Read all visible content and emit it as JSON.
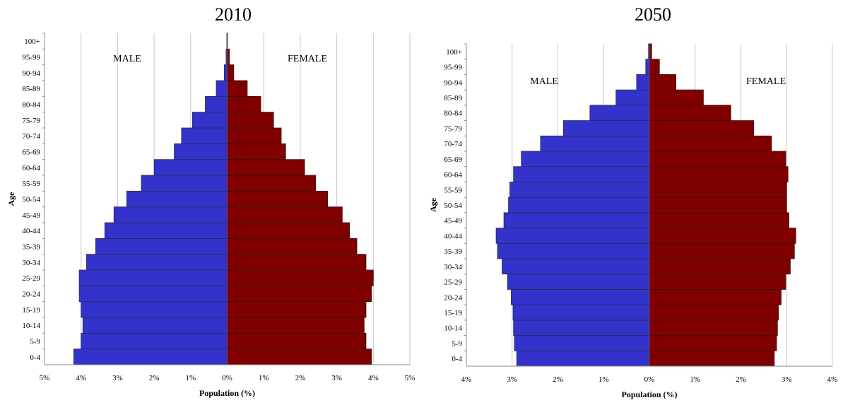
{
  "charts": [
    {
      "title": "2010"
    },
    {
      "title": "2050"
    }
  ],
  "chart_data": [
    {
      "type": "bar",
      "orientation": "horizontal",
      "title": "2010",
      "xlabel": "Population (%)",
      "ylabel": "Age",
      "xlim": [
        -5,
        5
      ],
      "xticks": [
        "5%",
        "4%",
        "3%",
        "2%",
        "1%",
        "0%",
        "1%",
        "2%",
        "3%",
        "4%",
        "5%"
      ],
      "grid": "vertical",
      "categories": [
        "0-4",
        "5-9",
        "10-14",
        "15-19",
        "20-24",
        "25-29",
        "30-34",
        "35-39",
        "40-44",
        "45-49",
        "50-54",
        "55-59",
        "60-64",
        "65-69",
        "70-74",
        "75-79",
        "80-84",
        "85-89",
        "90-94",
        "95-99",
        "100+"
      ],
      "annotations": [
        "MALE",
        "FEMALE"
      ],
      "series": [
        {
          "name": "MALE",
          "color": "#3333cc",
          "values": [
            4.2,
            4.0,
            3.95,
            4.0,
            4.05,
            4.05,
            3.85,
            3.6,
            3.35,
            3.1,
            2.75,
            2.35,
            2.0,
            1.45,
            1.25,
            0.95,
            0.6,
            0.3,
            0.08,
            0.03,
            0.01
          ]
        },
        {
          "name": "FEMALE",
          "color": "#800000",
          "values": [
            3.95,
            3.8,
            3.75,
            3.8,
            3.95,
            4.0,
            3.8,
            3.55,
            3.35,
            3.15,
            2.75,
            2.42,
            2.12,
            1.6,
            1.48,
            1.27,
            0.92,
            0.55,
            0.18,
            0.06,
            0.01
          ]
        }
      ]
    },
    {
      "type": "bar",
      "orientation": "horizontal",
      "title": "2050",
      "xlabel": "Population (%)",
      "ylabel": "Age",
      "xlim": [
        -4,
        4
      ],
      "xticks": [
        "4%",
        "3%",
        "2%",
        "1%",
        "0%",
        "1%",
        "2%",
        "3%",
        "4%"
      ],
      "grid": "vertical",
      "categories": [
        "0-4",
        "5-9",
        "10-14",
        "15-19",
        "20-24",
        "25-29",
        "30-34",
        "35-39",
        "40-44",
        "45-49",
        "50-54",
        "55-59",
        "60-64",
        "65-69",
        "70-74",
        "75-79",
        "80-84",
        "85-89",
        "90-94",
        "95-99",
        "100+"
      ],
      "annotations": [
        "MALE",
        "FEMALE"
      ],
      "series": [
        {
          "name": "MALE",
          "color": "#3333cc",
          "values": [
            2.9,
            2.95,
            2.97,
            2.98,
            3.02,
            3.1,
            3.22,
            3.32,
            3.35,
            3.18,
            3.08,
            3.05,
            2.97,
            2.8,
            2.38,
            1.88,
            1.3,
            0.73,
            0.28,
            0.08,
            0.02
          ]
        },
        {
          "name": "FEMALE",
          "color": "#800000",
          "values": [
            2.73,
            2.78,
            2.8,
            2.82,
            2.88,
            2.98,
            3.08,
            3.17,
            3.2,
            3.05,
            3.0,
            3.0,
            3.03,
            2.98,
            2.67,
            2.28,
            1.78,
            1.18,
            0.58,
            0.22,
            0.05
          ]
        }
      ]
    }
  ]
}
